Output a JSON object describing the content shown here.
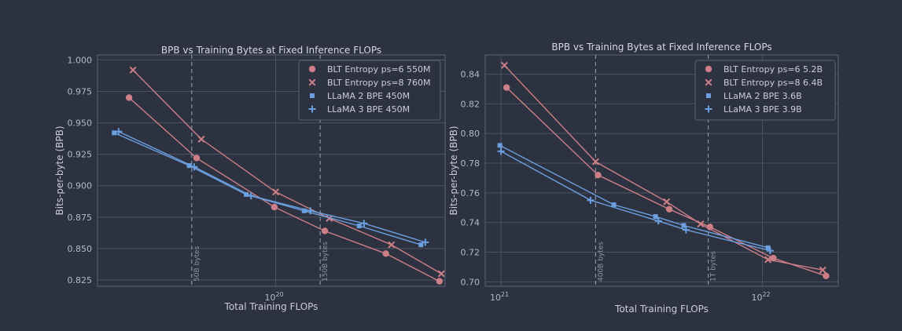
{
  "chart_data": [
    {
      "type": "line",
      "title": "BPB vs Training Bytes at Fixed Inference FLOPs",
      "xlabel": "Total Training FLOPs",
      "ylabel": "Bits-per-byte (BPB)",
      "xscale": "log",
      "xlim": [
        2.6e+19,
        3.6e+20
      ],
      "ylim": [
        0.82,
        1.004
      ],
      "yticks": [
        1.0,
        0.975,
        0.95,
        0.925,
        0.9,
        0.875,
        0.85,
        0.825
      ],
      "ytick_labels": [
        "1.000",
        "0.975",
        "0.950",
        "0.925",
        "0.900",
        "0.875",
        "0.850",
        "0.825"
      ],
      "xticks": [
        {
          "value": 1e+20,
          "base": "10",
          "exp": "20"
        }
      ],
      "legend_position": "top-right",
      "vlines": [
        {
          "x": 5.3e+19,
          "label": "50B bytes"
        },
        {
          "x": 1.4e+20,
          "label": "150B bytes"
        }
      ],
      "series": [
        {
          "name": "BLT Entropy ps=6 550M",
          "color": "#cd7f88",
          "marker": "circle",
          "x": [
            3.3e+19,
            5.5e+19,
            9.9e+19,
            1.45e+20,
            2.3e+20,
            3.45e+20
          ],
          "y": [
            0.97,
            0.922,
            0.883,
            0.864,
            0.846,
            0.824
          ]
        },
        {
          "name": "BLT Entropy ps=8 760M",
          "color": "#cd7f88",
          "marker": "x",
          "x": [
            3.4e+19,
            5.7e+19,
            1e+20,
            1.5e+20,
            2.4e+20,
            3.5e+20
          ],
          "y": [
            0.992,
            0.937,
            0.895,
            0.874,
            0.853,
            0.83
          ]
        },
        {
          "name": "LLaMA 2 BPE 450M",
          "color": "#6b9fe0",
          "marker": "square",
          "x": [
            2.95e+19,
            5.2e+19,
            8e+19,
            1.24e+20,
            1.88e+20,
            3e+20
          ],
          "y": [
            0.942,
            0.916,
            0.893,
            0.88,
            0.868,
            0.853
          ]
        },
        {
          "name": "LLaMA 3 BPE 450M",
          "color": "#6b9fe0",
          "marker": "plus",
          "x": [
            3.05e+19,
            5.4e+19,
            8.3e+19,
            1.3e+20,
            1.95e+20,
            3.1e+20
          ],
          "y": [
            0.943,
            0.915,
            0.892,
            0.88,
            0.87,
            0.855
          ]
        }
      ]
    },
    {
      "type": "line",
      "title": "BPB vs Training Bytes at Fixed Inference FLOPs",
      "xlabel": "Total Training FLOPs",
      "ylabel": "Bits-per-byte (BPB)",
      "xscale": "log",
      "xlim": [
        8.7e+20,
        1.95e+22
      ],
      "ylim": [
        0.697,
        0.853
      ],
      "yticks": [
        0.84,
        0.82,
        0.8,
        0.78,
        0.76,
        0.74,
        0.72,
        0.7
      ],
      "ytick_labels": [
        "0.84",
        "0.82",
        "0.80",
        "0.78",
        "0.76",
        "0.74",
        "0.72",
        "0.70"
      ],
      "xticks": [
        {
          "value": 1e+21,
          "base": "10",
          "exp": "21"
        },
        {
          "value": 1e+22,
          "base": "10",
          "exp": "22"
        }
      ],
      "legend_position": "top-right",
      "vlines": [
        {
          "x": 2.3e+21,
          "label": "400B bytes"
        },
        {
          "x": 6.2e+21,
          "label": "1T bytes"
        }
      ],
      "series": [
        {
          "name": "BLT Entropy ps=6 5.2B",
          "color": "#cd7f88",
          "marker": "circle",
          "x": [
            1.05e+21,
            2.35e+21,
            4.4e+21,
            6.3e+21,
            1.1e+22,
            1.75e+22
          ],
          "y": [
            0.831,
            0.772,
            0.749,
            0.737,
            0.716,
            0.704
          ]
        },
        {
          "name": "BLT Entropy ps=8 6.4B",
          "color": "#cd7f88",
          "marker": "x",
          "x": [
            1.03e+21,
            2.3e+21,
            4.3e+21,
            5.8e+21,
            1.05e+22,
            1.7e+22
          ],
          "y": [
            0.846,
            0.781,
            0.754,
            0.739,
            0.715,
            0.708
          ]
        },
        {
          "name": "LLaMA 2 BPE 3.6B",
          "color": "#6b9fe0",
          "marker": "square",
          "x": [
            9.9e+20,
            2.7e+21,
            3.9e+21,
            5e+21,
            1.05e+22
          ],
          "y": [
            0.792,
            0.752,
            0.744,
            0.738,
            0.723
          ]
        },
        {
          "name": "LLaMA 3 BPE 3.9B",
          "color": "#6b9fe0",
          "marker": "plus",
          "x": [
            1e+21,
            2.2e+21,
            4e+21,
            5.1e+21,
            1.07e+22
          ],
          "y": [
            0.788,
            0.755,
            0.741,
            0.735,
            0.721
          ]
        }
      ]
    }
  ]
}
